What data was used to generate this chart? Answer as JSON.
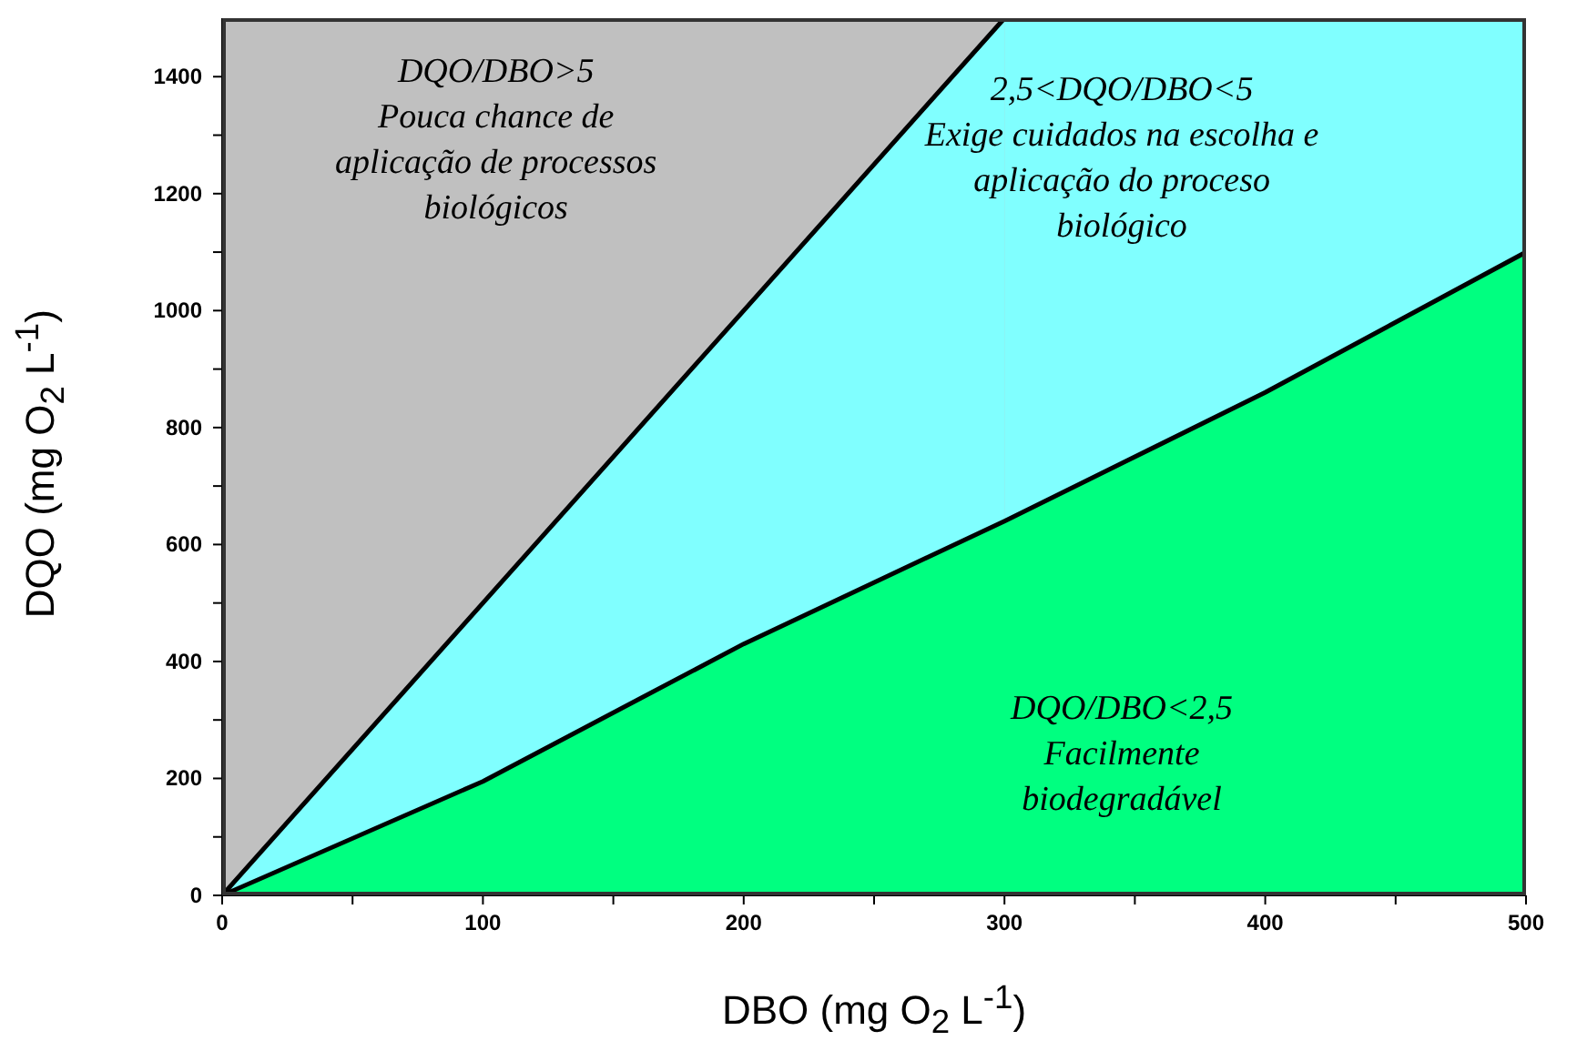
{
  "chart_data": {
    "type": "area",
    "xlabel": "DBO (mg O$_{2}$ L$^{-1}$)",
    "ylabel": "DQO (mg O$_{2}$ L$^{-1}$)",
    "series": [
      {
        "color": "#80ffff",
        "x": [
          0,
          100,
          200,
          300
        ],
        "values": [
          0,
          500,
          1000,
          1500
        ]
      },
      {
        "color": "#00ff80",
        "x": [
          0,
          100,
          200,
          300,
          400,
          500
        ],
        "values": [
          0,
          195,
          430,
          640,
          860,
          1100
        ]
      }
    ],
    "bands": [
      {
        "axis": "y",
        "from": 0,
        "to": 1500,
        "color": "#c0c0c0"
      },
      {
        "axis": "x",
        "from": 300,
        "to": 500,
        "color": "#80ffff"
      }
    ],
    "annotations": [
      "DQO/DBO>5\nPouca chance de\naplicação de processos\nbiológicos",
      "2,5<DQO/DBO<5\nExige cuidados na escolha e\naplicação do proceso\nbiológico",
      "DQO/DBO<2,5\nFacilmente\nbiodegradável"
    ],
    "xlim": [
      0,
      500
    ],
    "xticks": [
      0,
      {
        "value": 50,
        "label": null
      },
      100,
      {
        "value": 150,
        "label": null
      },
      200,
      {
        "value": 250,
        "label": null
      },
      300,
      {
        "value": 350,
        "label": null
      },
      400,
      {
        "value": 450,
        "label": null
      },
      500
    ],
    "ylim": [
      0,
      1500
    ],
    "yticks": [
      0,
      {
        "value": 100,
        "label": null
      },
      200,
      {
        "value": 300,
        "label": null
      },
      400,
      {
        "value": 500,
        "label": null
      },
      600,
      {
        "value": 700,
        "label": null
      },
      800,
      {
        "value": 900,
        "label": null
      },
      1000,
      {
        "value": 1100,
        "label": null
      },
      1200,
      {
        "value": 1300,
        "label": null
      },
      1400
    ],
    "grid": false,
    "legend": false
  }
}
